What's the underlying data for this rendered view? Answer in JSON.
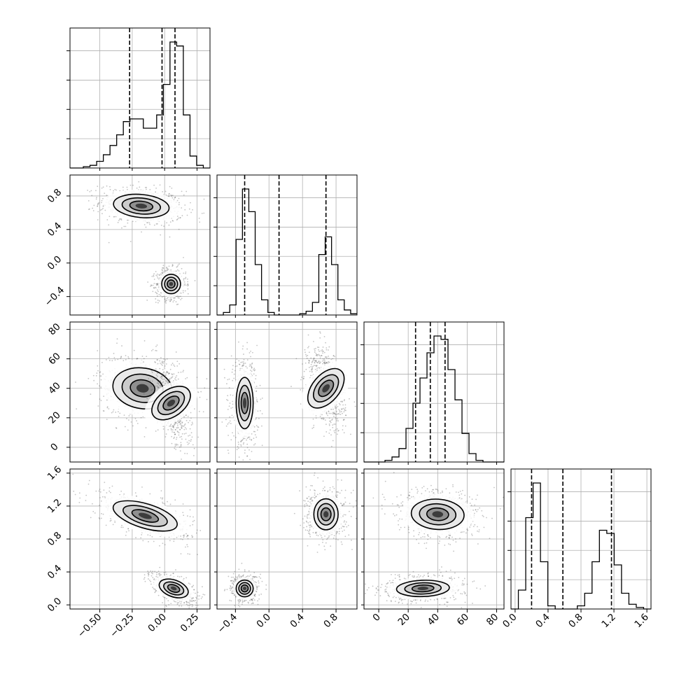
{
  "chart_data": {
    "type": "corner",
    "grid": true,
    "colors": {
      "hist_line": "#000000",
      "contour": "#000000",
      "points": "#555555",
      "background": "#ffffff",
      "grid": "#b0b0b0"
    },
    "variables": [
      {
        "xlim": [
          -0.73,
          0.35
        ],
        "ticks": [
          -0.5,
          -0.25,
          0.0,
          0.25
        ],
        "tick_labels": [
          "−0.50",
          "−0.25",
          "0.00",
          "0.25"
        ],
        "quantiles": [
          -0.27,
          -0.02,
          0.08
        ]
      },
      {
        "xlim": [
          -0.62,
          1.05
        ],
        "ticks": [
          -0.4,
          0.0,
          0.4,
          0.8
        ],
        "tick_labels": [
          "−0.4",
          "0.0",
          "0.4",
          "0.8"
        ],
        "quantiles": [
          -0.29,
          0.12,
          0.68
        ]
      },
      {
        "xlim": [
          -10,
          85
        ],
        "ticks": [
          0,
          20,
          40,
          60,
          80
        ],
        "tick_labels": [
          "0",
          "20",
          "40",
          "60",
          "80"
        ],
        "quantiles": [
          25,
          35,
          45
        ]
      },
      {
        "xlim": [
          -0.05,
          1.65
        ],
        "ticks": [
          0.0,
          0.4,
          0.8,
          1.2,
          1.6
        ],
        "tick_labels": [
          "0.0",
          "0.4",
          "0.8",
          "1.2",
          "1.6"
        ],
        "quantiles": [
          0.2,
          0.58,
          1.17
        ]
      }
    ],
    "histograms": [
      {
        "edges": [
          -0.73,
          0.35
        ],
        "counts": [
          0,
          0,
          1,
          2,
          5,
          10,
          17,
          25,
          35,
          37,
          37,
          30,
          30,
          40,
          63,
          95,
          92,
          40,
          9,
          2,
          0
        ]
      },
      {
        "edges": [
          -0.62,
          1.05
        ],
        "counts": [
          0,
          2,
          8,
          60,
          100,
          82,
          40,
          12,
          2,
          0,
          0,
          0,
          0,
          1,
          3,
          10,
          48,
          62,
          40,
          12,
          4,
          1
        ]
      },
      {
        "edges": [
          -10,
          85
        ],
        "counts": [
          0,
          0,
          0,
          1,
          3,
          8,
          20,
          35,
          50,
          65,
          75,
          73,
          55,
          37,
          17,
          5,
          1,
          0,
          0,
          0
        ]
      },
      {
        "edges": [
          -0.05,
          1.65
        ],
        "counts": [
          0,
          12,
          58,
          80,
          30,
          2,
          0,
          0,
          0,
          2,
          10,
          30,
          50,
          48,
          28,
          10,
          3,
          1,
          0
        ]
      }
    ],
    "blobs": {
      "1_0": [
        {
          "cx": -0.18,
          "cy": 0.68,
          "sx": 0.14,
          "sy": 0.1,
          "rho": -0.2,
          "w": 0.5
        },
        {
          "cx": 0.05,
          "cy": -0.25,
          "sx": 0.05,
          "sy": 0.08,
          "rho": 0.0,
          "w": 0.5
        }
      ],
      "2_0": [
        {
          "cx": -0.17,
          "cy": 40,
          "sx": 0.15,
          "sy": 10,
          "rho": -0.2,
          "w": 0.5
        },
        {
          "cx": 0.05,
          "cy": 30,
          "sx": 0.06,
          "sy": 12,
          "rho": -0.6,
          "w": 0.5
        }
      ],
      "2_1": [
        {
          "cx": -0.29,
          "cy": 30,
          "sx": 0.07,
          "sy": 12,
          "rho": 0.0,
          "w": 0.5
        },
        {
          "cx": 0.68,
          "cy": 40,
          "sx": 0.1,
          "sy": 12,
          "rho": -0.4,
          "w": 0.5
        }
      ],
      "3_0": [
        {
          "cx": -0.15,
          "cy": 1.08,
          "sx": 0.15,
          "sy": 0.12,
          "rho": -0.6,
          "w": 0.5
        },
        {
          "cx": 0.07,
          "cy": 0.2,
          "sx": 0.07,
          "sy": 0.08,
          "rho": -0.5,
          "w": 0.5
        }
      ],
      "3_1": [
        {
          "cx": -0.29,
          "cy": 0.2,
          "sx": 0.07,
          "sy": 0.07,
          "rho": 0.0,
          "w": 0.5
        },
        {
          "cx": 0.68,
          "cy": 1.1,
          "sx": 0.1,
          "sy": 0.13,
          "rho": 0.0,
          "w": 0.5
        }
      ],
      "3_2": [
        {
          "cx": 30,
          "cy": 0.2,
          "sx": 12,
          "sy": 0.07,
          "rho": 0.1,
          "w": 0.5
        },
        {
          "cx": 40,
          "cy": 1.1,
          "sx": 12,
          "sy": 0.13,
          "rho": -0.1,
          "w": 0.5
        }
      ]
    }
  }
}
